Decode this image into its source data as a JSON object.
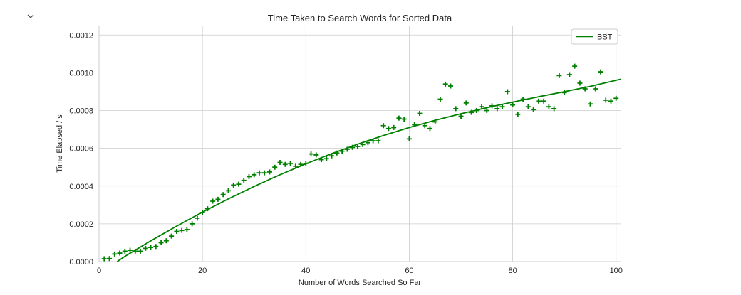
{
  "cell": {
    "collapse_icon": "chevron-down-icon"
  },
  "chart_data": {
    "type": "scatter",
    "title": "Time Taken to Search Words for Sorted Data",
    "xlabel": "Number of Words Searched So Far",
    "ylabel": "Time Elapsed / s",
    "xlim": [
      0,
      101
    ],
    "ylim": [
      0,
      0.00125
    ],
    "x_ticks": [
      0,
      20,
      40,
      60,
      80,
      100
    ],
    "x_tick_labels": [
      "0",
      "20",
      "40",
      "60",
      "80",
      "100"
    ],
    "y_ticks": [
      0,
      0.0002,
      0.0004,
      0.0006,
      0.0008,
      0.001,
      0.0012
    ],
    "y_tick_labels": [
      "0.0000",
      "0.0002",
      "0.0004",
      "0.0006",
      "0.0008",
      "0.0010",
      "0.0012"
    ],
    "grid": true,
    "legend_position": "top-right",
    "color": "#008000",
    "series": [
      {
        "name": "BST",
        "marker": "+",
        "x": [
          1,
          2,
          3,
          4,
          5,
          6,
          7,
          8,
          9,
          10,
          11,
          12,
          13,
          14,
          15,
          16,
          17,
          18,
          19,
          20,
          21,
          22,
          23,
          24,
          25,
          26,
          27,
          28,
          29,
          30,
          31,
          32,
          33,
          34,
          35,
          36,
          37,
          38,
          39,
          40,
          41,
          42,
          43,
          44,
          45,
          46,
          47,
          48,
          49,
          50,
          51,
          52,
          53,
          54,
          55,
          56,
          57,
          58,
          59,
          60,
          61,
          62,
          63,
          64,
          65,
          66,
          67,
          68,
          69,
          70,
          71,
          72,
          73,
          74,
          75,
          76,
          77,
          78,
          79,
          80,
          81,
          82,
          83,
          84,
          85,
          86,
          87,
          88,
          89,
          90,
          91,
          92,
          93,
          94,
          95,
          96,
          97,
          98,
          99,
          100
        ],
        "y": [
          1.5e-05,
          1.6e-05,
          4e-05,
          4.5e-05,
          5.5e-05,
          6e-05,
          5.5e-05,
          5.5e-05,
          7e-05,
          7.5e-05,
          8e-05,
          0.0001,
          0.00011,
          0.000135,
          0.00016,
          0.000165,
          0.00017,
          0.0002,
          0.00023,
          0.00026,
          0.00028,
          0.00032,
          0.00033,
          0.000355,
          0.000375,
          0.000405,
          0.00041,
          0.00043,
          0.00045,
          0.00046,
          0.00047,
          0.00047,
          0.000475,
          0.0005,
          0.000525,
          0.000515,
          0.00052,
          0.000505,
          0.000515,
          0.00052,
          0.00057,
          0.000565,
          0.00054,
          0.000545,
          0.00056,
          0.000575,
          0.000585,
          0.000595,
          0.000605,
          0.00061,
          0.00062,
          0.00063,
          0.00064,
          0.00064,
          0.00072,
          0.000705,
          0.00071,
          0.00076,
          0.000755,
          0.00065,
          0.000725,
          0.000785,
          0.00072,
          0.000705,
          0.00074,
          0.00086,
          0.00094,
          0.00093,
          0.00081,
          0.00077,
          0.00084,
          0.00079,
          0.0008,
          0.00082,
          0.0008,
          0.000825,
          0.00081,
          0.00082,
          0.0009,
          0.00083,
          0.00078,
          0.00086,
          0.00082,
          0.000805,
          0.00085,
          0.00085,
          0.00082,
          0.00081,
          0.000985,
          0.000895,
          0.00099,
          0.001035,
          0.000945,
          0.000915,
          0.000835,
          0.000915,
          0.001005,
          0.000855,
          0.00085,
          0.000865
        ]
      }
    ],
    "trend_line": {
      "name": "BST",
      "x": [
        3.5,
        5,
        10,
        15,
        20,
        25,
        30,
        35,
        40,
        45,
        50,
        55,
        60,
        65,
        70,
        75,
        80,
        85,
        90,
        95,
        101
      ],
      "y": [
        0.0,
        2.8e-05,
        0.00011,
        0.000188,
        0.000262,
        0.000332,
        0.000398,
        0.00046,
        0.000518,
        0.000572,
        0.000622,
        0.000668,
        0.00071,
        0.000748,
        0.000783,
        0.000815,
        0.000845,
        0.000873,
        0.0009,
        0.000928,
        0.000967
      ]
    }
  }
}
